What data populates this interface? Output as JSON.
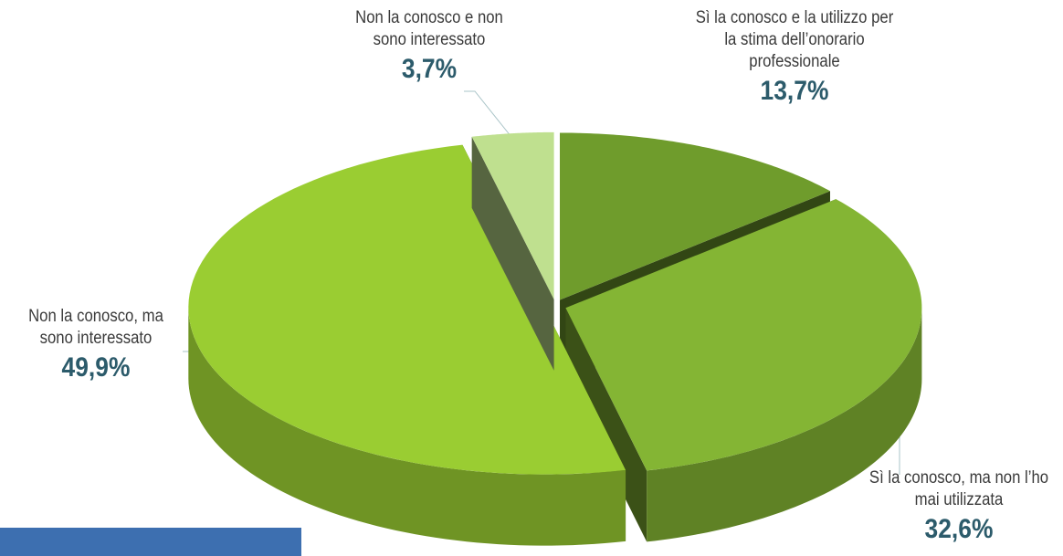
{
  "chart_data": {
    "type": "pie3d",
    "categories": [
      "Sì la conosco e la utilizzo per la stima dell’onorario professionale",
      "Sì la conosco, ma non l’ho mai utilizzata",
      "Non la conosco, ma sono interessato",
      "Non la conosco e non sono interessato"
    ],
    "values": [
      13.7,
      32.6,
      49.9,
      3.7
    ],
    "value_labels": [
      "13,7%",
      "32,6%",
      "49,9%",
      "3,7%"
    ],
    "colors": [
      "#6f9c2c",
      "#84b534",
      "#9acd32",
      "#bfe08f"
    ]
  }
}
